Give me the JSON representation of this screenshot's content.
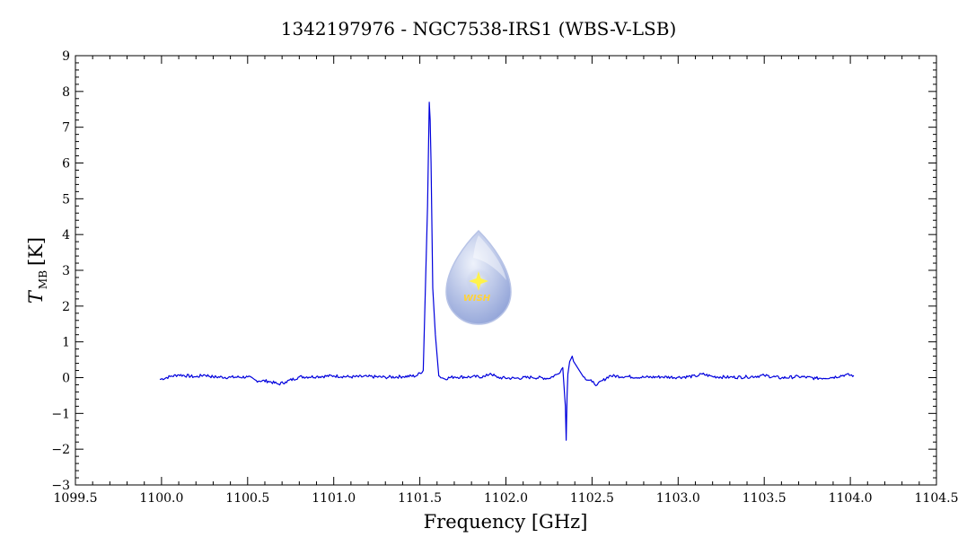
{
  "chart_data": {
    "type": "line",
    "title": "1342197976 - NGC7538-IRS1 (WBS-V-LSB)",
    "xlabel": "Frequency [GHz]",
    "ylabel_main": "T",
    "ylabel_sub": "MB",
    "ylabel_unit": "[K]",
    "xlim": [
      1099.5,
      1104.5
    ],
    "ylim": [
      -3,
      9
    ],
    "xticks": [
      "1099.5",
      "1100.0",
      "1100.5",
      "1101.0",
      "1101.5",
      "1102.0",
      "1102.5",
      "1103.0",
      "1103.5",
      "1104.0",
      "1104.5"
    ],
    "yticks": [
      "-3",
      "-2",
      "-1",
      "0",
      "1",
      "2",
      "3",
      "4",
      "5",
      "6",
      "7",
      "8",
      "9"
    ],
    "grid": false,
    "line_color": "#0000dd",
    "series": [
      {
        "x": [
          1099.99,
          1100.05,
          1100.1,
          1100.2,
          1100.25,
          1100.3,
          1100.4,
          1100.5,
          1100.55,
          1100.62,
          1100.68,
          1100.72,
          1100.8,
          1100.9,
          1101.0,
          1101.1,
          1101.2,
          1101.3,
          1101.4,
          1101.48,
          1101.52,
          1101.545,
          1101.555,
          1101.56,
          1101.565,
          1101.575,
          1101.59,
          1101.61,
          1101.64,
          1101.7,
          1101.8,
          1101.88,
          1101.91,
          1101.95,
          1102.05,
          1102.15,
          1102.25,
          1102.3,
          1102.33,
          1102.345,
          1102.35,
          1102.355,
          1102.36,
          1102.37,
          1102.385,
          1102.4,
          1102.45,
          1102.5,
          1102.53,
          1102.6,
          1102.7,
          1102.8,
          1102.9,
          1103.0,
          1103.1,
          1103.14,
          1103.2,
          1103.3,
          1103.4,
          1103.5,
          1103.6,
          1103.7,
          1103.8,
          1103.9,
          1103.97,
          1104.02
        ],
        "y": [
          -0.05,
          0.03,
          0.08,
          0.02,
          0.08,
          0.02,
          0.01,
          0.02,
          -0.08,
          -0.1,
          -0.18,
          -0.12,
          0.02,
          0.03,
          0.05,
          0.02,
          0.03,
          0.01,
          0.03,
          0.05,
          0.2,
          4.8,
          7.7,
          7.2,
          6.0,
          2.5,
          1.2,
          0.05,
          -0.03,
          0.02,
          0.02,
          0.03,
          0.12,
          0.0,
          -0.02,
          0.01,
          -0.02,
          0.1,
          0.28,
          -0.8,
          -1.75,
          -0.5,
          0.1,
          0.45,
          0.6,
          0.4,
          0.02,
          -0.12,
          -0.2,
          0.05,
          0.03,
          0.01,
          0.02,
          0.01,
          0.04,
          0.1,
          0.03,
          0.01,
          0.02,
          0.06,
          -0.01,
          0.03,
          -0.02,
          0.01,
          0.08,
          0.06
        ]
      }
    ],
    "logo": {
      "text": "WISH",
      "colors": {
        "drop_top": "#eef2fb",
        "drop_bottom": "#8c9fd6",
        "star": "#fff34a",
        "text": "#ffd23a"
      }
    }
  }
}
